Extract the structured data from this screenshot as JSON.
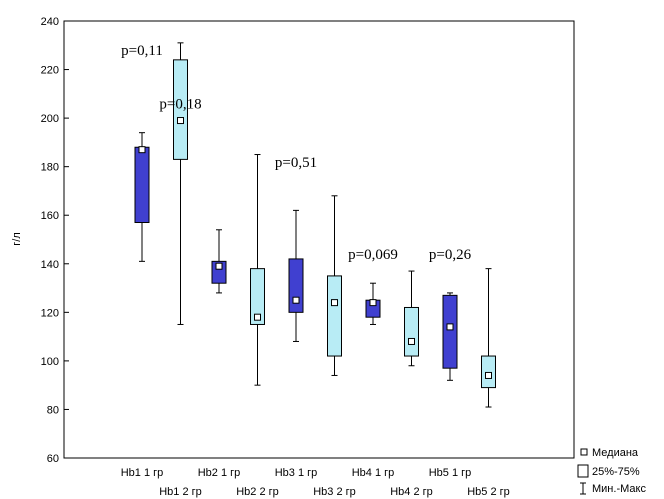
{
  "chart_data": {
    "type": "box",
    "ylabel": "г/л",
    "ylim": [
      60,
      240
    ],
    "yticks": [
      60,
      80,
      100,
      120,
      140,
      160,
      180,
      200,
      220,
      240
    ],
    "categories": [
      "Hb1 1 гр",
      "Hb1 2 гр",
      "Hb2 1 гр",
      "Hb2 2 гр",
      "Hb3 1 гр",
      "Hb3 2 гр",
      "Hb4 1 гр",
      "Hb4 2 гр",
      "Hb5 1 гр",
      "Hb5 2 гр"
    ],
    "group_colors": {
      "1 гр": "#4040d0",
      "2 гр": "#b8ecf5"
    },
    "boxes": [
      {
        "label": "Hb1 1 гр",
        "group": "1 гр",
        "min": 141,
        "q1": 157,
        "median": 187,
        "q3": 188,
        "max": 194
      },
      {
        "label": "Hb1 2 гр",
        "group": "2 гр",
        "min": 115,
        "q1": 183,
        "median": 199,
        "q3": 224,
        "max": 231
      },
      {
        "label": "Hb2 1 гр",
        "group": "1 гр",
        "min": 128,
        "q1": 132,
        "median": 139,
        "q3": 141,
        "max": 154
      },
      {
        "label": "Hb2 2 гр",
        "group": "2 гр",
        "min": 90,
        "q1": 115,
        "median": 118,
        "q3": 138,
        "max": 185
      },
      {
        "label": "Hb3 1 гр",
        "group": "1 гр",
        "min": 108,
        "q1": 120,
        "median": 125,
        "q3": 142,
        "max": 162
      },
      {
        "label": "Hb3 2 гр",
        "group": "2 гр",
        "min": 94,
        "q1": 102,
        "median": 124,
        "q3": 135,
        "max": 168
      },
      {
        "label": "Hb4 1 гр",
        "group": "1 гр",
        "min": 115,
        "q1": 118,
        "median": 124,
        "q3": 125,
        "max": 132
      },
      {
        "label": "Hb4 2 гр",
        "group": "2 гр",
        "min": 98,
        "q1": 102,
        "median": 108,
        "q3": 122,
        "max": 137
      },
      {
        "label": "Hb5 1 гр",
        "group": "1 гр",
        "min": 92,
        "q1": 97,
        "median": 114,
        "q3": 127,
        "max": 128
      },
      {
        "label": "Hb5 2 гр",
        "group": "2 гр",
        "min": 81,
        "q1": 89,
        "median": 94,
        "q3": 102,
        "max": 138
      }
    ],
    "annotations": [
      {
        "text": "p=0,11",
        "near": "Hb1 1 гр",
        "y": 228
      },
      {
        "text": "p=0,18",
        "near": "Hb1 2 гр",
        "y": 206
      },
      {
        "text": "p=0,51",
        "near": "Hb3 1 гр",
        "y": 182
      },
      {
        "text": "p=0,069",
        "near": "Hb4 1 гр",
        "y": 144
      },
      {
        "text": "p=0,26",
        "near": "Hb5 1 гр",
        "y": 144
      }
    ],
    "legend": [
      "Медиана",
      "25%-75%",
      "Мин.-Макс"
    ],
    "legend_position": "bottom-right",
    "grid": false
  }
}
